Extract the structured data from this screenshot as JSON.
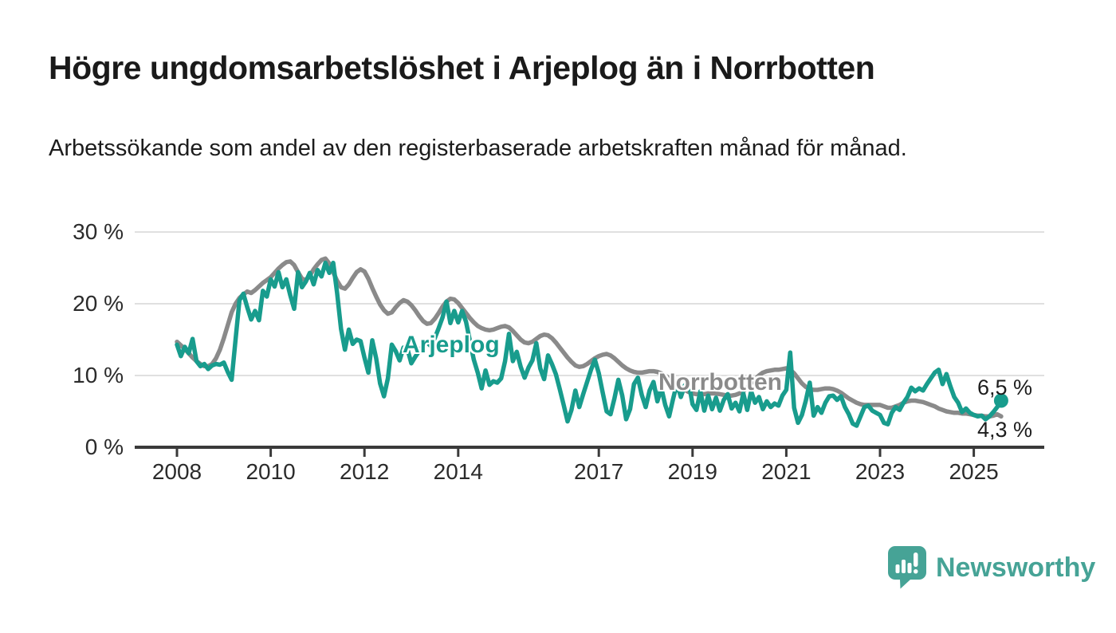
{
  "header": {
    "title": "Högre ungdomsarbetslöshet i Arjeplog än i Norrbotten",
    "subtitle": "Arbetssökande som andel av den registerbaserade arbetskraften månad för månad."
  },
  "chart_data": {
    "type": "line",
    "title": "Högre ungdomsarbetslöshet i Arjeplog än i Norrbotten",
    "subtitle": "Arbetssökande som andel av den registerbaserade arbetskraften månad för månad.",
    "unit": "%",
    "x_start_year": 2008,
    "points_per_year": 12,
    "x_end": "2025-08",
    "ylim": [
      0,
      30
    ],
    "grid": "horizontal",
    "legend_position": "inline-labels",
    "y_ticks": [
      {
        "value": 0,
        "label": "0 %"
      },
      {
        "value": 10,
        "label": "10 %"
      },
      {
        "value": 20,
        "label": "20 %"
      },
      {
        "value": 30,
        "label": "30 %"
      }
    ],
    "x_ticks": [
      {
        "value": 2008,
        "label": "2008"
      },
      {
        "value": 2010,
        "label": "2010"
      },
      {
        "value": 2012,
        "label": "2012"
      },
      {
        "value": 2014,
        "label": "2014"
      },
      {
        "value": 2017,
        "label": "2017"
      },
      {
        "value": 2019,
        "label": "2019"
      },
      {
        "value": 2021,
        "label": "2021"
      },
      {
        "value": 2023,
        "label": "2023"
      },
      {
        "value": 2025,
        "label": "2025"
      }
    ],
    "series": [
      {
        "name": "Arjeplog",
        "inline_label": "Arjeplog",
        "end_label": "6,5 %",
        "end_value": 6.5,
        "end_dot": true,
        "color": "#189c8d",
        "values": [
          14.3,
          12.7,
          14.0,
          13.1,
          15.1,
          12.0,
          11.3,
          11.6,
          10.9,
          11.4,
          11.6,
          11.5,
          11.8,
          10.5,
          9.4,
          15.0,
          20.5,
          21.4,
          19.5,
          17.8,
          19.0,
          17.7,
          21.8,
          21.0,
          23.4,
          22.4,
          24.4,
          22.3,
          23.4,
          21.2,
          19.3,
          24.4,
          22.3,
          23.1,
          24.3,
          22.7,
          24.7,
          23.8,
          25.7,
          24.3,
          25.7,
          21.5,
          16.5,
          13.6,
          16.4,
          14.4,
          15.0,
          14.8,
          12.5,
          10.4,
          14.9,
          12.4,
          8.9,
          7.1,
          9.6,
          14.3,
          13.4,
          12.1,
          13.9,
          13.7,
          11.7,
          12.6,
          13.4,
          14.2,
          14.6,
          14.1,
          15.2,
          16.6,
          18.1,
          20.3,
          17.3,
          19.0,
          17.4,
          19.0,
          17.5,
          14.8,
          12.2,
          10.4,
          8.2,
          10.7,
          8.7,
          9.2,
          9.0,
          9.6,
          12.0,
          15.8,
          12.0,
          13.3,
          11.2,
          9.7,
          11.1,
          12.1,
          14.5,
          11.0,
          9.5,
          12.8,
          11.6,
          10.2,
          8.1,
          5.9,
          3.6,
          5.2,
          7.9,
          5.6,
          7.4,
          9.1,
          10.8,
          12.2,
          10.3,
          7.6,
          5.0,
          4.6,
          6.8,
          9.4,
          7.2,
          3.9,
          5.3,
          8.8,
          9.7,
          7.3,
          5.6,
          7.9,
          9.1,
          6.4,
          8.3,
          5.9,
          4.3,
          6.7,
          8.9,
          7.0,
          8.6,
          9.0,
          6.0,
          5.2,
          7.8,
          5.1,
          7.2,
          5.3,
          6.9,
          5.1,
          6.6,
          7.4,
          5.4,
          6.2,
          5.0,
          7.5,
          5.2,
          7.8,
          6.2,
          7.0,
          5.3,
          6.4,
          5.6,
          6.1,
          5.8,
          7.2,
          8.0,
          13.2,
          5.5,
          3.4,
          4.5,
          6.5,
          9.0,
          4.4,
          5.6,
          4.8,
          6.2,
          7.1,
          7.2,
          6.6,
          7.1,
          5.6,
          4.6,
          3.3,
          3.0,
          4.3,
          5.6,
          5.8,
          5.1,
          4.8,
          4.5,
          3.4,
          3.2,
          4.8,
          5.6,
          5.2,
          6.2,
          7.0,
          8.3,
          7.8,
          8.2,
          7.9,
          8.8,
          9.6,
          10.4,
          10.8,
          8.8,
          10.2,
          8.5,
          7.0,
          6.2,
          4.9,
          5.4,
          4.8,
          4.5,
          4.3,
          4.4,
          3.9,
          4.3,
          4.9,
          5.6,
          6.5
        ]
      },
      {
        "name": "Norrbotten",
        "inline_label": "Norrbotten",
        "end_label": "4,3 %",
        "end_value": 4.3,
        "end_dot": false,
        "color": "#8a8a8a",
        "values": [
          14.7,
          14.2,
          13.7,
          13.1,
          12.5,
          12.0,
          11.6,
          11.3,
          11.3,
          11.6,
          12.4,
          13.6,
          15.2,
          17.0,
          18.8,
          20.0,
          20.8,
          21.3,
          21.7,
          21.5,
          21.9,
          22.4,
          22.9,
          23.3,
          23.7,
          24.3,
          24.9,
          25.4,
          25.8,
          25.9,
          25.4,
          24.4,
          23.5,
          23.3,
          23.9,
          24.8,
          25.5,
          26.1,
          26.3,
          25.6,
          24.4,
          23.2,
          22.3,
          22.1,
          22.7,
          23.6,
          24.4,
          24.8,
          24.5,
          23.5,
          22.2,
          21.0,
          19.9,
          19.1,
          18.6,
          18.8,
          19.5,
          20.1,
          20.5,
          20.3,
          19.8,
          19.1,
          18.3,
          17.6,
          17.2,
          17.3,
          17.9,
          18.7,
          19.6,
          20.3,
          20.7,
          20.6,
          20.1,
          19.4,
          18.7,
          18.0,
          17.4,
          16.9,
          16.6,
          16.4,
          16.3,
          16.4,
          16.6,
          16.8,
          16.9,
          16.7,
          16.2,
          15.6,
          15.0,
          14.6,
          14.5,
          14.7,
          15.1,
          15.5,
          15.7,
          15.6,
          15.2,
          14.6,
          13.9,
          13.2,
          12.5,
          11.9,
          11.4,
          11.2,
          11.3,
          11.6,
          12.0,
          12.4,
          12.7,
          12.9,
          13.0,
          12.8,
          12.4,
          11.9,
          11.4,
          11.0,
          10.7,
          10.5,
          10.4,
          10.4,
          10.5,
          10.6,
          10.6,
          10.5,
          10.3,
          10.0,
          9.6,
          9.2,
          8.8,
          8.4,
          8.0,
          7.7,
          7.5,
          7.4,
          7.4,
          7.4,
          7.5,
          7.5,
          7.5,
          7.4,
          7.3,
          7.2,
          7.2,
          7.3,
          7.5,
          7.8,
          8.3,
          8.9,
          9.5,
          10.0,
          10.4,
          10.6,
          10.7,
          10.8,
          10.8,
          10.9,
          11.0,
          10.8,
          10.3,
          9.6,
          8.9,
          8.4,
          8.1,
          8.0,
          8.0,
          8.1,
          8.2,
          8.2,
          8.1,
          7.9,
          7.6,
          7.2,
          6.8,
          6.5,
          6.2,
          6.0,
          5.9,
          5.9,
          5.9,
          5.9,
          5.9,
          5.7,
          5.5,
          5.5,
          5.7,
          5.9,
          6.2,
          6.4,
          6.5,
          6.5,
          6.4,
          6.3,
          6.1,
          5.9,
          5.7,
          5.4,
          5.2,
          5.0,
          4.9,
          4.8,
          4.8,
          4.7,
          4.7,
          4.6,
          4.5,
          4.4,
          4.4,
          4.3,
          4.3,
          4.4,
          4.6,
          4.3
        ]
      }
    ],
    "colors": {
      "axis": "#3a3a3a",
      "gridline": "#e0e0e0",
      "arjeplog": "#189c8d",
      "norrbotten": "#8a8a8a"
    }
  },
  "footer": {
    "logo_text": "Newsworthy",
    "logo_color": "#46a396",
    "logo_icon": "newsworthy-speech-bubble-bar-chart-icon"
  }
}
